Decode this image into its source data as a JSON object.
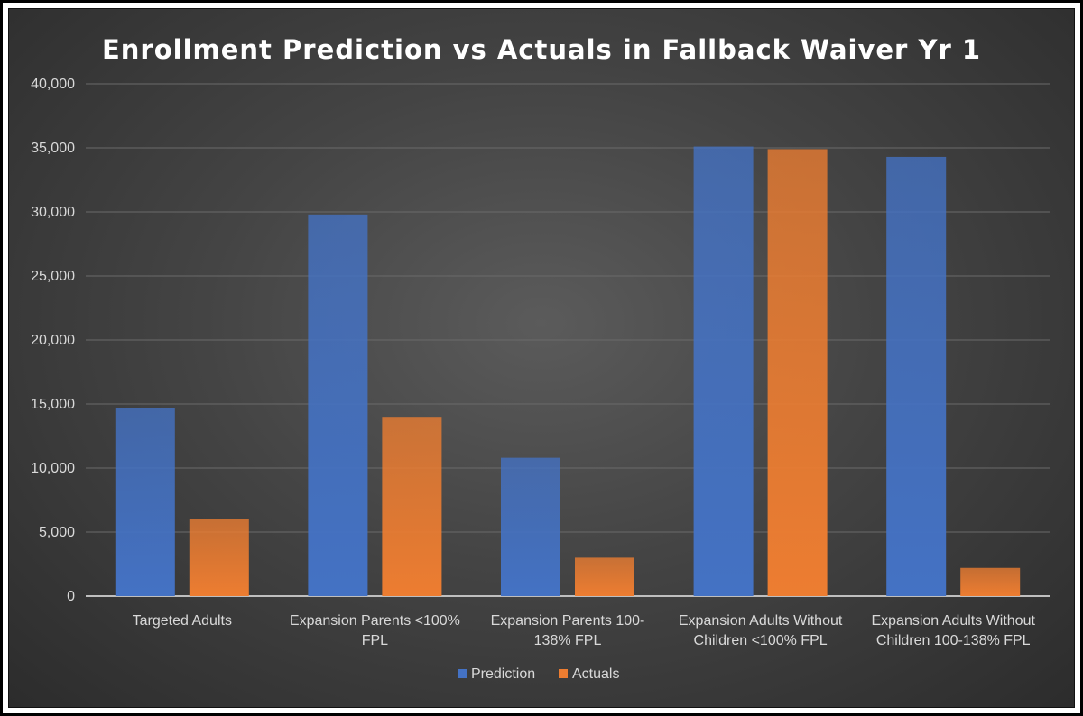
{
  "chart_data": {
    "type": "bar",
    "title": "Enrollment Prediction vs Actuals in Fallback Waiver Yr 1",
    "categories": [
      [
        "Targeted Adults"
      ],
      [
        "Expansion Parents <100%",
        "FPL"
      ],
      [
        "Expansion Parents 100-",
        "138% FPL"
      ],
      [
        "Expansion Adults Without",
        "Children <100% FPL"
      ],
      [
        "Expansion Adults Without",
        "Children 100-138% FPL"
      ]
    ],
    "series": [
      {
        "name": "Prediction",
        "values": [
          14700,
          29800,
          10800,
          35100,
          34300
        ],
        "color": "#4472c4"
      },
      {
        "name": "Actuals",
        "values": [
          6000,
          14000,
          3000,
          34900,
          2200
        ],
        "color": "#ed7d31"
      }
    ],
    "yticks": [
      "0",
      "5,000",
      "10,000",
      "15,000",
      "20,000",
      "25,000",
      "30,000",
      "35,000",
      "40,000"
    ],
    "ylim": [
      0,
      40000
    ],
    "ystep": 5000,
    "grid": true,
    "legend": "bottom-center",
    "colors": {
      "background": "#444444",
      "gridline": "#6a6a6a",
      "text": "#d9d9d9",
      "title": "#ffffff"
    }
  }
}
